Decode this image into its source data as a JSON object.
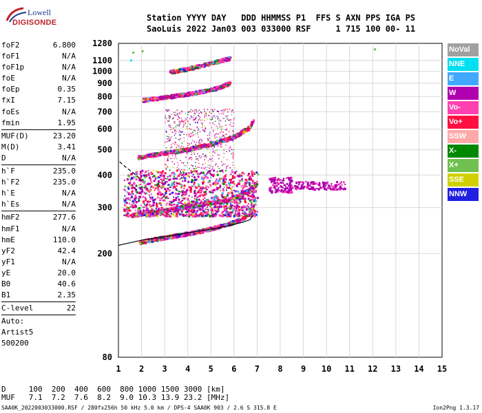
{
  "logo": {
    "line1": "Lowell",
    "line2": "DIGISONDE"
  },
  "header": {
    "line1": "Station YYYY DAY   DDD HHMMSS P1  FFS S AXN PPS IGA PS",
    "line2": "SaoLuis 2022 Jan03 003 033000 RSF     1 715 100 00- 11"
  },
  "params": {
    "group1": [
      {
        "name": "foF2",
        "value": "6.800"
      },
      {
        "name": "foF1",
        "value": "N/A"
      },
      {
        "name": "foF1p",
        "value": "N/A"
      },
      {
        "name": "foE",
        "value": "N/A"
      },
      {
        "name": "foEp",
        "value": "0.35"
      },
      {
        "name": "fxI",
        "value": "7.15"
      },
      {
        "name": "foEs",
        "value": "N/A"
      },
      {
        "name": "fmin",
        "value": "1.95"
      }
    ],
    "group2": [
      {
        "name": "MUF(D)",
        "value": "23.20"
      },
      {
        "name": "M(D)",
        "value": "3.41"
      },
      {
        "name": "D",
        "value": "N/A"
      }
    ],
    "group3": [
      {
        "name": "h`F",
        "value": "235.0"
      },
      {
        "name": "h`F2",
        "value": "235.0"
      },
      {
        "name": "h`E",
        "value": "N/A"
      },
      {
        "name": "h`Es",
        "value": "N/A"
      }
    ],
    "group4": [
      {
        "name": "hmF2",
        "value": "277.6"
      },
      {
        "name": "hmF1",
        "value": "N/A"
      },
      {
        "name": "hmE",
        "value": "110.0"
      },
      {
        "name": "yF2",
        "value": "42.4"
      },
      {
        "name": "yF1",
        "value": "N/A"
      },
      {
        "name": "yE",
        "value": "20.0"
      },
      {
        "name": "B0",
        "value": "40.6"
      },
      {
        "name": "B1",
        "value": "2.35"
      }
    ],
    "group5": [
      {
        "name": "C-level",
        "value": "22"
      }
    ],
    "auto": [
      "Auto:",
      "Artist5",
      "500200"
    ]
  },
  "legend": [
    {
      "label": "NoVal",
      "color": "#a0a0a0"
    },
    {
      "label": "NNE",
      "color": "#00e0f0"
    },
    {
      "label": "E",
      "color": "#40a8ff"
    },
    {
      "label": "W",
      "color": "#b000b0"
    },
    {
      "label": "Vo-",
      "color": "#ff40b0"
    },
    {
      "label": "Vo+",
      "color": "#ff1040"
    },
    {
      "label": "SSW",
      "color": "#ffa8a8"
    },
    {
      "label": "X-",
      "color": "#008800"
    },
    {
      "label": "X+",
      "color": "#70c050"
    },
    {
      "label": "SSE",
      "color": "#d0d000"
    },
    {
      "label": "NNW",
      "color": "#2020e0"
    }
  ],
  "bottom": {
    "row1": "D     100  200  400  600  800 1000 1500 3000 [km]",
    "row2": "MUF   7.1  7.2  7.6  8.2  9.0 10.3 13.9 23.2 [MHz]",
    "footer": "SAA0K_2022003033000.RSF / 280fx256h 50 kHz 5.0 km / DPS-4 SAA0K 903 / 2.6 S 315.8 E",
    "version": "Ion2Png 1.3.17"
  },
  "chart_data": {
    "type": "scatter",
    "xlim": [
      1,
      15
    ],
    "ylim": [
      80,
      1280
    ],
    "y_scale": "log",
    "x_ticks": [
      "1",
      "2",
      "3",
      "4",
      "5",
      "6",
      "7",
      "8",
      "9",
      "10",
      "11",
      "12",
      "13",
      "14",
      "15"
    ],
    "y_ticks": [
      "80",
      "200",
      "300",
      "400",
      "500",
      "600",
      "700",
      "800",
      "900",
      "1000",
      "1100",
      "1280"
    ],
    "grid": true,
    "traces": [
      {
        "name": "F2 O-trace",
        "points": [
          [
            1.9,
            222
          ],
          [
            2.5,
            228
          ],
          [
            3.0,
            232
          ],
          [
            3.5,
            236
          ],
          [
            4.0,
            240
          ],
          [
            4.5,
            245
          ],
          [
            5.0,
            251
          ],
          [
            5.5,
            258
          ],
          [
            6.0,
            266
          ],
          [
            6.4,
            276
          ],
          [
            6.7,
            290
          ],
          [
            6.8,
            305
          ]
        ]
      },
      {
        "name": "F2 X-trace",
        "points": [
          [
            1.5,
            282
          ],
          [
            2.5,
            290
          ],
          [
            3.5,
            300
          ],
          [
            4.5,
            310
          ],
          [
            5.5,
            320
          ],
          [
            6.2,
            335
          ],
          [
            6.7,
            355
          ],
          [
            7.0,
            375
          ]
        ]
      },
      {
        "name": "2nd hop",
        "points": [
          [
            1.8,
            470
          ],
          [
            3.0,
            490
          ],
          [
            4.0,
            505
          ],
          [
            5.0,
            530
          ],
          [
            6.0,
            565
          ],
          [
            6.6,
            610
          ],
          [
            6.8,
            650
          ]
        ]
      },
      {
        "name": "3rd hop",
        "points": [
          [
            2.0,
            780
          ],
          [
            3.0,
            800
          ],
          [
            4.0,
            825
          ],
          [
            5.0,
            855
          ],
          [
            5.6,
            890
          ],
          [
            5.8,
            910
          ]
        ]
      },
      {
        "name": "4th hop",
        "points": [
          [
            3.2,
            1000
          ],
          [
            4.0,
            1030
          ],
          [
            4.6,
            1060
          ],
          [
            5.3,
            1100
          ],
          [
            5.8,
            1130
          ]
        ]
      }
    ],
    "scatter_region": [
      {
        "x": [
          1.2,
          7.0
        ],
        "y": [
          280,
          420
        ]
      },
      {
        "x": [
          7.5,
          8.5
        ],
        "y": [
          345,
          395
        ]
      },
      {
        "x": [
          8.6,
          10.8
        ],
        "y": [
          355,
          380
        ]
      }
    ],
    "model_curve": {
      "name": "model profile",
      "points": [
        [
          1.0,
          215
        ],
        [
          2.0,
          225
        ],
        [
          3.0,
          232
        ],
        [
          4.0,
          240
        ],
        [
          5.0,
          248
        ],
        [
          5.8,
          256
        ],
        [
          6.4,
          264
        ],
        [
          6.7,
          270
        ],
        [
          6.8,
          280
        ]
      ]
    },
    "dashed_curve": {
      "points": [
        [
          1.05,
          450
        ],
        [
          1.3,
          430
        ],
        [
          1.6,
          410
        ],
        [
          1.9,
          390
        ],
        [
          2.0,
          380
        ]
      ]
    },
    "stray_points": [
      [
        1.6,
        1190
      ],
      [
        1.5,
        1110
      ],
      [
        2.0,
        1205
      ],
      [
        12.05,
        1225
      ]
    ]
  }
}
